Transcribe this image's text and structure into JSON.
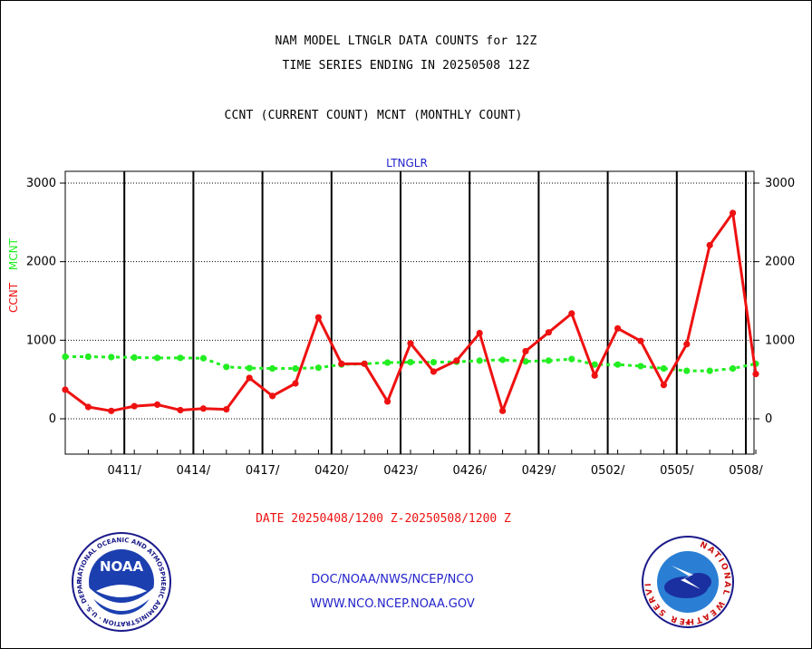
{
  "header": {
    "line1": "NAM MODEL LTNGLR DATA COUNTS for 12Z",
    "line2": "TIME SERIES ENDING IN 20250508 12Z",
    "line3": "CCNT (CURRENT COUNT) MCNT (MONTHLY COUNT)"
  },
  "chart_data": {
    "type": "line",
    "title": "LTNGLR",
    "ylabel_ccnt": "CCNT",
    "ylabel_mcnt": "MCNT",
    "xlabel": "DATE 20250408/1200 Z-20250508/1200 Z",
    "ylim": [
      -450,
      3150
    ],
    "yticks": [
      0,
      1000,
      2000,
      3000
    ],
    "ytick_labels": [
      "0",
      "1000",
      "2000",
      "3000"
    ],
    "x_tick_labels": [
      "0411/",
      "0414/",
      "0417/",
      "0420/",
      "0423/",
      "0426/",
      "0429/",
      "0502/",
      "0505/",
      "0508/"
    ],
    "x_tick_index": [
      3,
      6,
      9,
      12,
      15,
      18,
      21,
      24,
      27,
      30
    ],
    "grid": true,
    "colors": {
      "ccnt": "#ee1111",
      "mcnt": "#22ee22",
      "title": "#2222cc"
    },
    "series": [
      {
        "name": "CCNT",
        "values": [
          370,
          150,
          100,
          160,
          180,
          110,
          130,
          120,
          520,
          290,
          450,
          1290,
          700,
          700,
          220,
          960,
          600,
          740,
          1090,
          100,
          860,
          1100,
          1340,
          550,
          1150,
          990,
          430,
          950,
          2210,
          2620,
          570
        ]
      },
      {
        "name": "MCNT",
        "values": [
          790,
          790,
          785,
          780,
          775,
          775,
          770,
          660,
          645,
          640,
          640,
          650,
          690,
          700,
          715,
          720,
          720,
          725,
          740,
          750,
          730,
          740,
          760,
          690,
          690,
          670,
          640,
          610,
          610,
          640,
          700
        ]
      }
    ]
  },
  "credits": {
    "line1": "DOC/NOAA/NWS/NCEP/NCO",
    "line2": "WWW.NCO.NCEP.NOAA.GOV"
  },
  "logos": {
    "noaa_text": "NOAA",
    "noaa_ring": "NATIONAL OCEANIC AND ATMOSPHERIC ADMINISTRATION · U.S. DEPARTMENT OF COMMERCE",
    "nws_ring": "NATIONAL WEATHER SERVICE"
  }
}
